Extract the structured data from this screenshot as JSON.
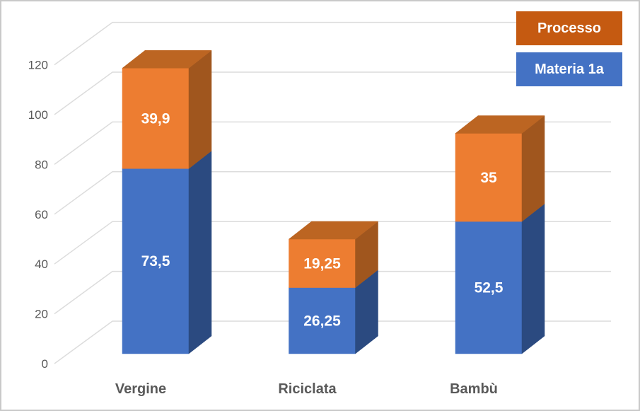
{
  "chart_data": {
    "type": "bar",
    "subtype": "3d-stacked-column",
    "title": "",
    "categories": [
      "Vergine",
      "Riciclata",
      "Bambù"
    ],
    "series": [
      {
        "name": "Materia 1a",
        "values": [
          73.5,
          26.25,
          52.5
        ],
        "value_labels": [
          "73,5",
          "26,25",
          "52,5"
        ],
        "color_front": "#4472C4",
        "color_side": "#2B4A80",
        "color_top": "#35599B"
      },
      {
        "name": "Processo",
        "values": [
          39.9,
          19.25,
          35
        ],
        "value_labels": [
          "39,9",
          "19,25",
          "35"
        ],
        "color_front": "#ED7D31",
        "color_side": "#A0561E",
        "color_top": "#BC6522"
      }
    ],
    "y_axis": {
      "min": 0,
      "max": 120,
      "step": 20,
      "tick_labels": [
        "0",
        "20",
        "40",
        "60",
        "80",
        "100",
        "120"
      ]
    },
    "grid": true,
    "legend_position": "top-right",
    "legend": [
      {
        "label": "Processo",
        "color": "#C55A11",
        "text_color": "#FFFFFF"
      },
      {
        "label": "Materia 1a",
        "color": "#4472C4",
        "text_color": "#FFFFFF"
      }
    ],
    "colors": {
      "gridline": "#DCDCDC",
      "axis_text": "#595959",
      "category_text": "#595959",
      "data_label_text": "#FFFFFF",
      "background": "#FFFFFF",
      "frame_border": "#C9C9C9"
    }
  }
}
